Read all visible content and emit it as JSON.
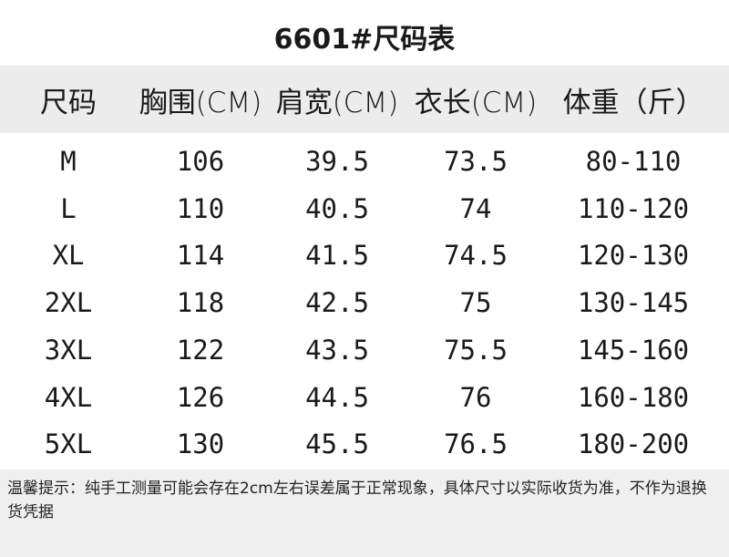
{
  "title": "6601#尺码表",
  "table": {
    "headers": [
      "尺码",
      "胸围(CM)",
      "肩宽(CM)",
      "衣长(CM)",
      "体重（斤）"
    ],
    "rows": [
      [
        "M",
        "106",
        "39.5",
        "73.5",
        "80-110"
      ],
      [
        "L",
        "110",
        "40.5",
        "74",
        "110-120"
      ],
      [
        "XL",
        "114",
        "41.5",
        "74.5",
        "120-130"
      ],
      [
        "2XL",
        "118",
        "42.5",
        "75",
        "130-145"
      ],
      [
        "3XL",
        "122",
        "43.5",
        "75.5",
        "145-160"
      ],
      [
        "4XL",
        "126",
        "44.5",
        "76",
        "160-180"
      ],
      [
        "5XL",
        "130",
        "45.5",
        "76.5",
        "180-200"
      ]
    ]
  },
  "note": "温馨提示：纯手工测量可能会存在2cm左右误差属于正常现象，具体尺寸以实际收货为准，不作为退换货凭据",
  "colors": {
    "header_bg": "#ececec",
    "footer_bg": "#efefef",
    "text": "#1a1a1a"
  }
}
